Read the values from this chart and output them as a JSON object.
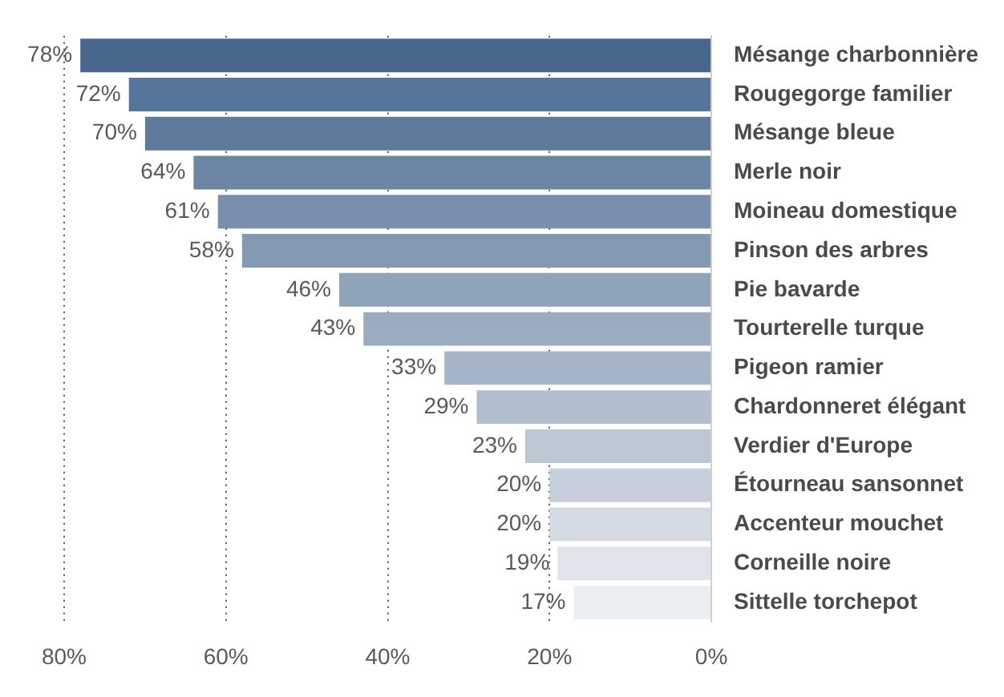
{
  "chart_data": {
    "type": "bar",
    "orientation": "horizontal",
    "categories": [
      "Mésange charbonnière",
      "Rougegorge familier",
      "Mésange bleue",
      "Merle noir",
      "Moineau domestique",
      "Pinson des arbres",
      "Pie bavarde",
      "Tourterelle turque",
      "Pigeon ramier",
      "Chardonneret élégant",
      "Verdier d'Europe",
      "Étourneau sansonnet",
      "Accenteur mouchet",
      "Corneille noire",
      "Sittelle torchepot"
    ],
    "values": [
      78,
      72,
      70,
      64,
      61,
      58,
      46,
      43,
      33,
      29,
      23,
      20,
      20,
      19,
      17
    ],
    "value_labels": [
      "78%",
      "72%",
      "70%",
      "64%",
      "61%",
      "58%",
      "46%",
      "43%",
      "33%",
      "29%",
      "23%",
      "20%",
      "20%",
      "19%",
      "17%"
    ],
    "colors": [
      "#48678c",
      "#56759a",
      "#5f7b9b",
      "#6b86a3",
      "#7890ab",
      "#8398b1",
      "#8fa3ba",
      "#9aacc0",
      "#a5b5c8",
      "#b0bece",
      "#bcc7d4",
      "#c6cfdb",
      "#d3dae3",
      "#dfe4ea",
      "#eaedf1"
    ],
    "xlim": [
      80,
      0
    ],
    "xticks": [
      {
        "value": 80,
        "label": "80%"
      },
      {
        "value": 60,
        "label": "60%"
      },
      {
        "value": 40,
        "label": "40%"
      },
      {
        "value": 20,
        "label": "20%"
      },
      {
        "value": 0,
        "label": "0%"
      }
    ],
    "grid": "x",
    "legend": false
  }
}
